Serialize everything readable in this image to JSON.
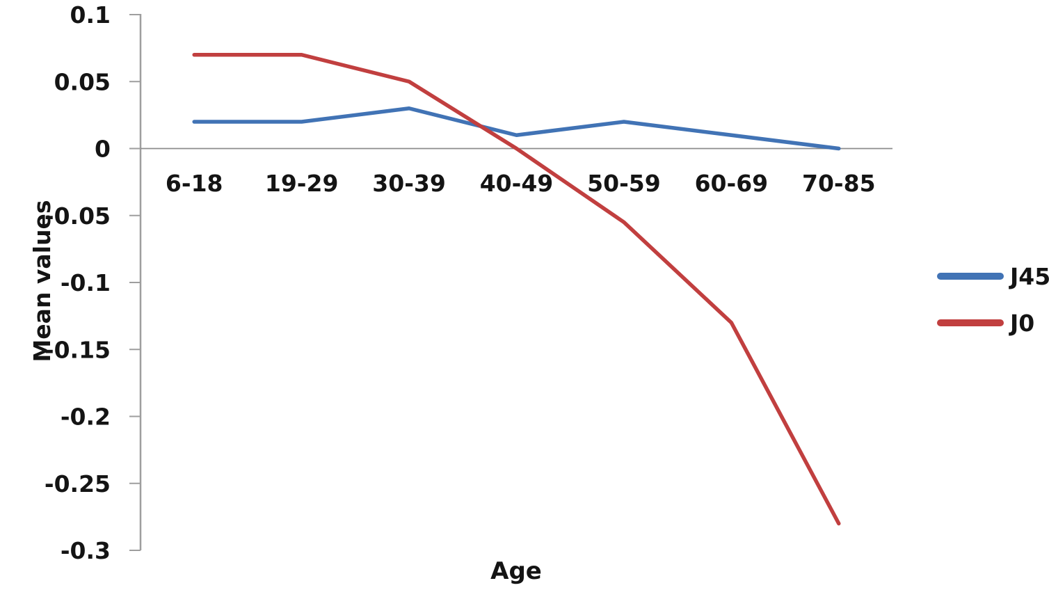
{
  "chart_data": {
    "type": "line",
    "title": "",
    "xlabel": "Age",
    "ylabel": "Mean values",
    "categories": [
      "6-18",
      "19-29",
      "30-39",
      "40-49",
      "50-59",
      "60-69",
      "70-85"
    ],
    "series": [
      {
        "name": "J45",
        "color": "#4173B5",
        "values": [
          0.02,
          0.02,
          0.03,
          0.01,
          0.02,
          0.01,
          0.0
        ]
      },
      {
        "name": "J0",
        "color": "#C13F3F",
        "values": [
          0.07,
          0.07,
          0.05,
          0.0,
          -0.055,
          -0.13,
          -0.28
        ]
      }
    ],
    "ylim": [
      -0.3,
      0.1
    ],
    "y_tick_labels": [
      "0.1",
      "0.05",
      "0",
      "-0.05",
      "-0.1",
      "-0.15",
      "-0.2",
      "-0.25",
      "-0.3"
    ],
    "grid": false,
    "legend_position": "right",
    "axis_color": "#9E9E9E",
    "zero_line_color": "#8C8C8C",
    "text_color": "#141414"
  }
}
